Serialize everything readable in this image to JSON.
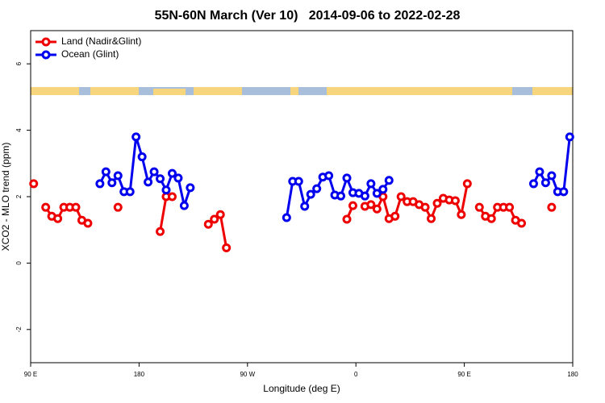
{
  "chart_data": {
    "type": "line",
    "title": "55N-60N March (Ver 10)   2014-09-06 to 2022-02-28",
    "x_label": "Longitude (deg E)",
    "y_label": "XCO2 - MLO trend (ppm)",
    "x": [
      92.5,
      97.5,
      102.5,
      107.5,
      112.5,
      117.5,
      122.5,
      127.5,
      132.5,
      137.5,
      142.5,
      147.5,
      152.5,
      157.5,
      162.5,
      167.5,
      172.5,
      177.5,
      182.5,
      187.5,
      192.5,
      197.5,
      202.5,
      207.5,
      212.5,
      217.5,
      222.5,
      227.5,
      232.5,
      237.5,
      242.5,
      247.5,
      252.5,
      257.5,
      262.5,
      267.5,
      272.5,
      277.5,
      282.5,
      287.5,
      292.5,
      297.5,
      302.5,
      307.5,
      312.5,
      317.5,
      322.5,
      327.5,
      332.5,
      337.5,
      342.5,
      347.5,
      352.5,
      357.5,
      362.5,
      367.5,
      372.5,
      377.5,
      382.5,
      387.5,
      392.5,
      397.5,
      402.5,
      407.5,
      412.5,
      417.5,
      422.5,
      427.5,
      432.5,
      437.5,
      442.5,
      447.5,
      452.5,
      457.5,
      462.5,
      467.5,
      472.5,
      477.5,
      482.5,
      487.5,
      492.5,
      497.5,
      502.5,
      507.5,
      512.5,
      517.5,
      522.5,
      527.5,
      532.5,
      537.5
    ],
    "series": [
      {
        "name": "Land (Nadir&Glint)",
        "color": "#ee0000",
        "values": [
          2.39,
          null,
          1.68,
          1.41,
          1.34,
          1.68,
          1.68,
          1.68,
          1.29,
          1.2,
          null,
          null,
          null,
          null,
          1.68,
          null,
          null,
          null,
          null,
          null,
          null,
          0.95,
          2.0,
          2.0,
          null,
          null,
          null,
          null,
          null,
          1.17,
          1.32,
          1.46,
          0.46,
          null,
          null,
          null,
          null,
          null,
          null,
          null,
          null,
          null,
          null,
          null,
          null,
          null,
          null,
          null,
          null,
          null,
          null,
          null,
          1.32,
          1.73,
          null,
          1.71,
          1.76,
          1.63,
          2.0,
          1.34,
          1.41,
          2.0,
          1.85,
          1.85,
          1.76,
          1.68,
          1.34,
          1.8,
          1.95,
          1.9,
          1.88,
          1.46,
          2.39,
          null,
          1.68,
          1.41,
          1.34,
          1.68,
          1.68,
          1.68,
          1.29,
          1.2,
          null,
          null,
          null,
          null,
          1.68,
          null,
          null,
          null
        ]
      },
      {
        "name": "Ocean (Glint)",
        "color": "#0000ee",
        "values": [
          null,
          null,
          null,
          null,
          null,
          null,
          null,
          null,
          null,
          null,
          null,
          2.39,
          2.75,
          2.42,
          2.63,
          2.15,
          2.15,
          3.8,
          3.2,
          2.44,
          2.75,
          2.54,
          2.2,
          2.7,
          2.56,
          1.73,
          2.27,
          null,
          null,
          null,
          null,
          null,
          null,
          null,
          null,
          null,
          null,
          null,
          null,
          null,
          null,
          null,
          1.37,
          2.46,
          2.46,
          1.71,
          2.07,
          2.24,
          2.59,
          2.63,
          2.05,
          2.02,
          2.56,
          2.12,
          2.1,
          2.02,
          2.39,
          2.1,
          2.22,
          2.49,
          null,
          null,
          null,
          null,
          null,
          null,
          null,
          null,
          null,
          null,
          null,
          null,
          null,
          null,
          null,
          null,
          null,
          null,
          null,
          null,
          null,
          null,
          null,
          2.39,
          2.75,
          2.42,
          2.63,
          2.15,
          2.15,
          3.8
        ]
      }
    ],
    "xlim": [
      90,
      540
    ],
    "xticks": [
      {
        "value": 90,
        "label": "90 E"
      },
      180,
      {
        "value": 270,
        "label": "90 W"
      },
      {
        "value": 360,
        "label": "0"
      },
      {
        "value": 450,
        "label": "90 E"
      },
      {
        "value": 540,
        "label": "180"
      }
    ],
    "ylim": [
      -3,
      7
    ],
    "yticks": [
      -2,
      0,
      2,
      4,
      6
    ],
    "legend": "top-left"
  }
}
